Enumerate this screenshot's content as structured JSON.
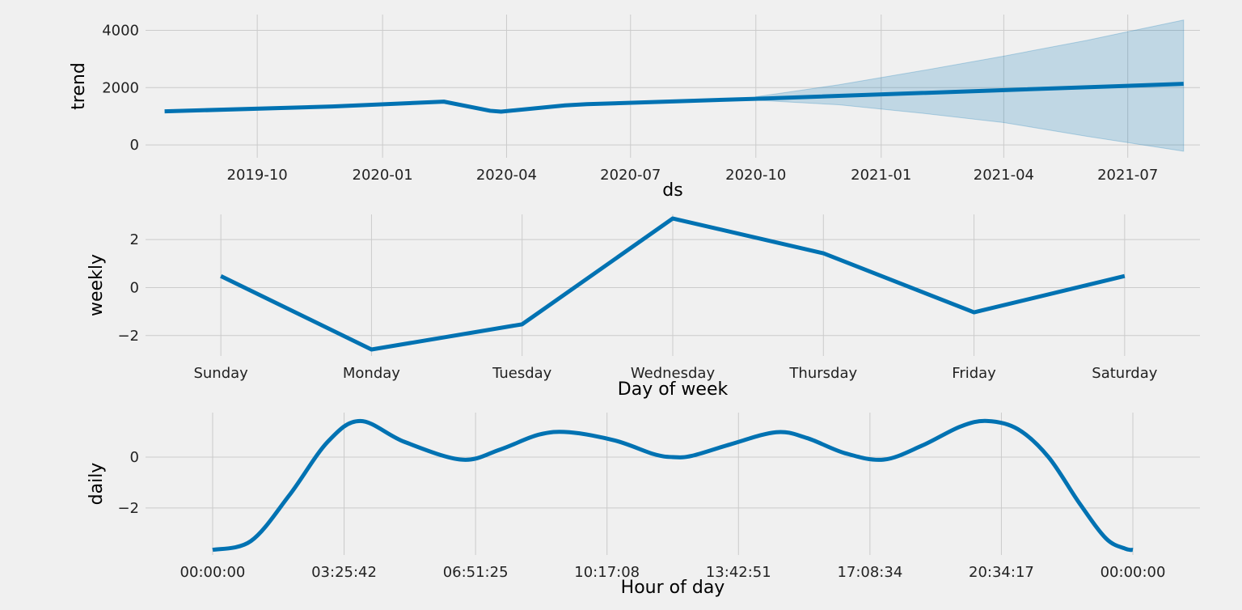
{
  "chart_data": [
    {
      "type": "area",
      "ylabel": "trend",
      "xlabel": "ds",
      "ylim": [
        -450,
        4550
      ],
      "yticks": [
        0,
        2000,
        4000
      ],
      "xlim": [
        "2019-07-11",
        "2021-08-23"
      ],
      "xticks": [
        {
          "label": "2019-10",
          "x": "2019-10-01"
        },
        {
          "label": "2020-01",
          "x": "2020-01-01"
        },
        {
          "label": "2020-04",
          "x": "2020-04-01"
        },
        {
          "label": "2020-07",
          "x": "2020-07-01"
        },
        {
          "label": "2020-10",
          "x": "2020-10-01"
        },
        {
          "label": "2021-01",
          "x": "2021-01-01"
        },
        {
          "label": "2021-04",
          "x": "2021-04-01"
        },
        {
          "label": "2021-07",
          "x": "2021-07-01"
        }
      ],
      "series": [
        {
          "x": [
            "2019-07-25",
            "2019-11-25",
            "2020-02-15",
            "2020-03-20",
            "2020-03-28",
            "2020-05-14",
            "2020-05-30",
            "2020-10-01",
            "2021-08-11"
          ],
          "y": [
            1170,
            1340,
            1510,
            1190,
            1160,
            1380,
            1420,
            1610,
            2130
          ]
        }
      ],
      "interval": {
        "x": [
          "2020-10-01",
          "2020-12-01",
          "2021-02-01",
          "2021-04-01",
          "2021-06-01",
          "2021-08-11"
        ],
        "upper": [
          1680,
          2100,
          2600,
          3100,
          3650,
          4360
        ],
        "lower": [
          1560,
          1400,
          1100,
          780,
          300,
          -220
        ]
      },
      "grid": true
    },
    {
      "type": "line",
      "ylabel": "weekly",
      "xlabel": "Day of week",
      "categories": [
        "Sunday",
        "Monday",
        "Tuesday",
        "Wednesday",
        "Thursday",
        "Friday",
        "Saturday"
      ],
      "values": [
        0.48,
        -2.58,
        -1.53,
        2.88,
        1.43,
        -1.03,
        0.48
      ],
      "ylim": [
        -2.85,
        3.05
      ],
      "yticks": [
        -2,
        0,
        2
      ],
      "grid": true
    },
    {
      "type": "line",
      "ylabel": "daily",
      "xlabel": "Hour of day",
      "xlim": [
        -1.75,
        25.75
      ],
      "xticks": [
        {
          "label": "00:00:00",
          "x": 0
        },
        {
          "label": "03:25:42",
          "x": 3.4283
        },
        {
          "label": "06:51:25",
          "x": 6.8569
        },
        {
          "label": "10:17:08",
          "x": 10.2856
        },
        {
          "label": "13:42:51",
          "x": 13.7142
        },
        {
          "label": "17:08:34",
          "x": 17.1428
        },
        {
          "label": "20:34:17",
          "x": 20.5714
        },
        {
          "label": "00:00:00",
          "x": 24
        }
      ],
      "x": [
        0,
        1,
        2,
        3,
        3.85,
        5,
        6.5,
        7.5,
        8.5,
        9.3,
        10.5,
        11.5,
        12,
        12.5,
        13.5,
        14.7,
        15.5,
        16.5,
        17.5,
        18.5,
        19.5,
        20.2,
        21,
        21.8,
        22.6,
        23.3,
        23.8,
        24
      ],
      "y": [
        -3.65,
        -3.3,
        -1.5,
        0.6,
        1.42,
        0.6,
        -0.1,
        0.3,
        0.88,
        0.98,
        0.65,
        0.12,
        0.0,
        0.05,
        0.5,
        0.98,
        0.75,
        0.15,
        -0.1,
        0.45,
        1.2,
        1.42,
        1.1,
        0.0,
        -1.8,
        -3.2,
        -3.6,
        -3.65
      ],
      "ylim": [
        -3.85,
        1.75
      ],
      "yticks": [
        -2,
        0
      ],
      "grid": true
    }
  ]
}
